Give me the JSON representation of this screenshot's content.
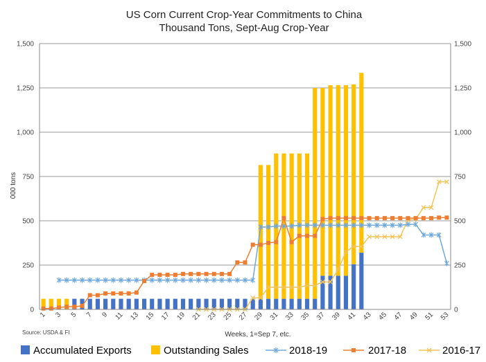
{
  "chart_data": {
    "type": "bar",
    "title": "US Corn Current Crop-Year Commitments to China",
    "subtitle": "Thousand Tons, Sept-Aug Crop-Year",
    "xlabel": "Weeks, 1=Sep 7, etc.",
    "ylabel": "000 tons",
    "source": "Source: USDA & FI",
    "ylim": [
      0,
      1500
    ],
    "y_ticks": [
      "0",
      "250",
      "500",
      "750",
      "1,000",
      "1,250",
      "1,500"
    ],
    "y_tick_values": [
      0,
      250,
      500,
      750,
      1000,
      1250,
      1500
    ],
    "x_ticks": [
      1,
      3,
      5,
      7,
      9,
      11,
      13,
      15,
      17,
      19,
      21,
      23,
      25,
      27,
      29,
      31,
      33,
      35,
      37,
      39,
      41,
      43,
      45,
      47,
      49,
      51,
      53
    ],
    "weeks": 53,
    "grid": true,
    "legend_position": "bottom",
    "colors": {
      "accumulated": "#4472c4",
      "outstanding": "#ffc000",
      "s2018": "#6fa8dc",
      "s2017": "#ed7d31",
      "s2016": "#f2c458",
      "grid": "#999999"
    },
    "stacked_bars": [
      {
        "name": "Accumulated Exports",
        "values": [
          0,
          0,
          0,
          0,
          60,
          60,
          60,
          60,
          60,
          60,
          60,
          60,
          60,
          60,
          60,
          60,
          60,
          60,
          60,
          60,
          60,
          60,
          60,
          60,
          60,
          60,
          60,
          60,
          60,
          60,
          60,
          60,
          60,
          60,
          60,
          60,
          190,
          190,
          190,
          190,
          255,
          320,
          0,
          0,
          0,
          0,
          0,
          0,
          0,
          0,
          0,
          0,
          0
        ]
      },
      {
        "name": "Outstanding Sales",
        "values": [
          60,
          60,
          60,
          60,
          0,
          0,
          0,
          0,
          0,
          0,
          0,
          0,
          0,
          0,
          0,
          0,
          0,
          0,
          0,
          0,
          0,
          0,
          0,
          0,
          0,
          0,
          0,
          0,
          755,
          755,
          820,
          820,
          820,
          820,
          820,
          1190,
          1060,
          1075,
          1075,
          1075,
          1015,
          1015,
          0,
          0,
          0,
          0,
          0,
          0,
          0,
          0,
          0,
          0,
          0
        ]
      }
    ],
    "series": [
      {
        "name": "2018-19",
        "marker": "star",
        "values": [
          null,
          null,
          165,
          165,
          165,
          165,
          165,
          165,
          165,
          165,
          165,
          165,
          165,
          165,
          165,
          165,
          165,
          165,
          165,
          165,
          165,
          165,
          165,
          165,
          165,
          165,
          165,
          165,
          465,
          465,
          470,
          470,
          470,
          475,
          475,
          475,
          475,
          475,
          475,
          475,
          475,
          475,
          475,
          475,
          475,
          475,
          475,
          480,
          480,
          420,
          420,
          420,
          260
        ]
      },
      {
        "name": "2017-18",
        "marker": "square",
        "values": [
          5,
          5,
          10,
          15,
          15,
          20,
          80,
          80,
          90,
          90,
          90,
          90,
          95,
          160,
          195,
          195,
          195,
          195,
          200,
          200,
          200,
          200,
          200,
          200,
          200,
          265,
          265,
          365,
          365,
          375,
          380,
          515,
          380,
          415,
          415,
          415,
          510,
          515,
          515,
          515,
          515,
          515,
          515,
          515,
          515,
          515,
          515,
          515,
          515,
          515,
          515,
          518,
          518
        ]
      },
      {
        "name": "2016-17",
        "marker": "x",
        "values": [
          null,
          null,
          null,
          null,
          null,
          null,
          null,
          null,
          null,
          null,
          null,
          null,
          null,
          null,
          null,
          null,
          null,
          null,
          null,
          null,
          0,
          0,
          0,
          0,
          0,
          0,
          0,
          65,
          65,
          125,
          125,
          125,
          125,
          125,
          135,
          135,
          155,
          155,
          225,
          325,
          355,
          355,
          410,
          410,
          410,
          410,
          410,
          505,
          510,
          575,
          575,
          720,
          720
        ]
      }
    ]
  }
}
